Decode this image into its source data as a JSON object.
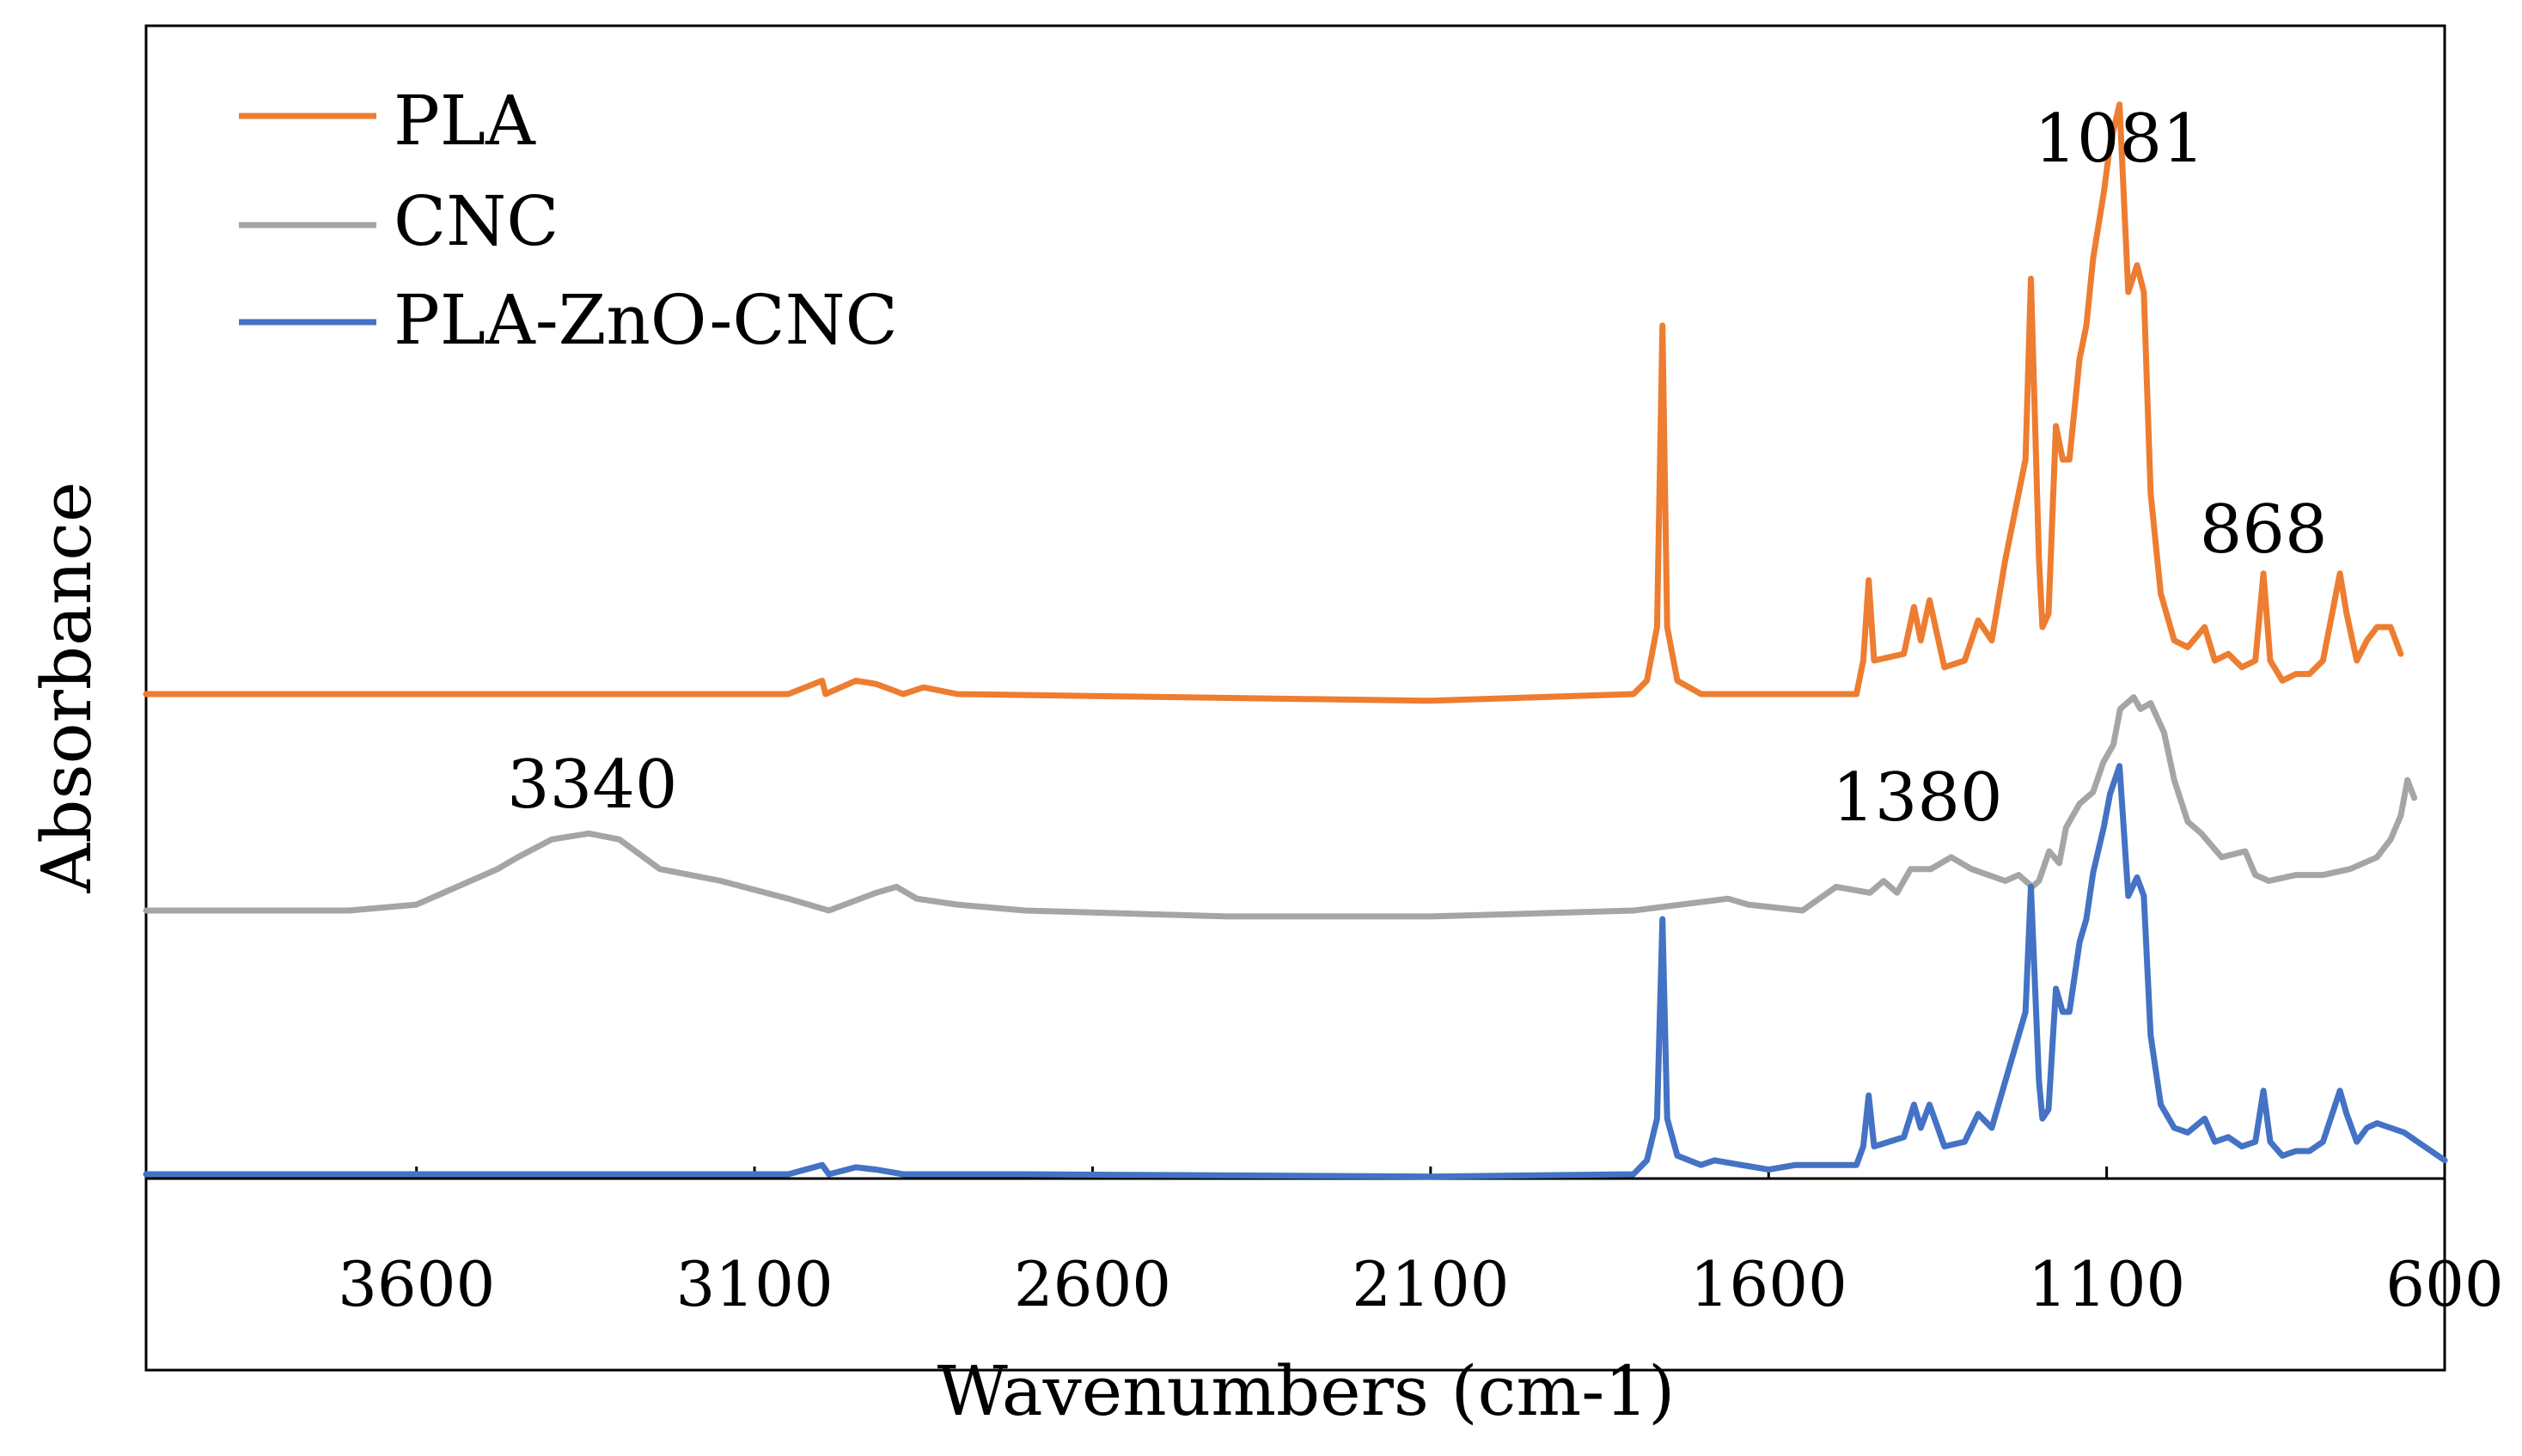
{
  "chart_data": {
    "type": "line",
    "title": "",
    "xlabel": "Wavenumbers (cm-1)",
    "ylabel": "Absorbance",
    "x_reversed": true,
    "xlim": [
      4000,
      600
    ],
    "x_ticks": [
      3600,
      3100,
      2600,
      2100,
      1600,
      1100,
      600
    ],
    "x_tick_labels": [
      "3600",
      "3100",
      "2600",
      "2100",
      "1600",
      "1100",
      "600"
    ],
    "y_ticks_shown": false,
    "grid": false,
    "legend_position": "top-left",
    "series": [
      {
        "name": "PLA",
        "color": "#ED7D31",
        "points": [
          [
            4000,
            0.0
          ],
          [
            3500,
            0.0
          ],
          [
            3050,
            0.0
          ],
          [
            3000,
            0.02
          ],
          [
            2995,
            0.0
          ],
          [
            2950,
            0.02
          ],
          [
            2920,
            0.015
          ],
          [
            2880,
            0.0
          ],
          [
            2850,
            0.01
          ],
          [
            2800,
            0.0
          ],
          [
            2100,
            -0.01
          ],
          [
            1800,
            0.0
          ],
          [
            1780,
            0.02
          ],
          [
            1765,
            0.1
          ],
          [
            1757,
            0.55
          ],
          [
            1750,
            0.1
          ],
          [
            1735,
            0.02
          ],
          [
            1700,
            0.0
          ],
          [
            1470,
            0.0
          ],
          [
            1460,
            0.05
          ],
          [
            1452,
            0.17
          ],
          [
            1444,
            0.05
          ],
          [
            1400,
            0.06
          ],
          [
            1385,
            0.13
          ],
          [
            1375,
            0.08
          ],
          [
            1362,
            0.14
          ],
          [
            1340,
            0.04
          ],
          [
            1310,
            0.05
          ],
          [
            1290,
            0.11
          ],
          [
            1270,
            0.08
          ],
          [
            1250,
            0.2
          ],
          [
            1230,
            0.3
          ],
          [
            1220,
            0.35
          ],
          [
            1212,
            0.62
          ],
          [
            1200,
            0.2
          ],
          [
            1195,
            0.1
          ],
          [
            1186,
            0.12
          ],
          [
            1175,
            0.4
          ],
          [
            1165,
            0.35
          ],
          [
            1155,
            0.35
          ],
          [
            1140,
            0.5
          ],
          [
            1130,
            0.55
          ],
          [
            1120,
            0.65
          ],
          [
            1104,
            0.75
          ],
          [
            1095,
            0.82
          ],
          [
            1081,
            0.88
          ],
          [
            1068,
            0.6
          ],
          [
            1055,
            0.64
          ],
          [
            1045,
            0.6
          ],
          [
            1035,
            0.3
          ],
          [
            1020,
            0.15
          ],
          [
            1000,
            0.08
          ],
          [
            980,
            0.07
          ],
          [
            955,
            0.1
          ],
          [
            940,
            0.05
          ],
          [
            920,
            0.06
          ],
          [
            900,
            0.04
          ],
          [
            880,
            0.05
          ],
          [
            868,
            0.18
          ],
          [
            858,
            0.05
          ],
          [
            840,
            0.02
          ],
          [
            820,
            0.03
          ],
          [
            800,
            0.03
          ],
          [
            780,
            0.05
          ],
          [
            755,
            0.18
          ],
          [
            745,
            0.12
          ],
          [
            730,
            0.05
          ],
          [
            715,
            0.08
          ],
          [
            700,
            0.1
          ],
          [
            680,
            0.1
          ],
          [
            665,
            0.06
          ]
        ]
      },
      {
        "name": "CNC",
        "color": "#A5A5A5",
        "points": [
          [
            4000,
            0.0
          ],
          [
            3700,
            0.0
          ],
          [
            3600,
            0.01
          ],
          [
            3520,
            0.05
          ],
          [
            3480,
            0.07
          ],
          [
            3450,
            0.09
          ],
          [
            3400,
            0.12
          ],
          [
            3345,
            0.13
          ],
          [
            3300,
            0.12
          ],
          [
            3240,
            0.07
          ],
          [
            3150,
            0.05
          ],
          [
            3050,
            0.02
          ],
          [
            2990,
            0.0
          ],
          [
            2920,
            0.03
          ],
          [
            2890,
            0.04
          ],
          [
            2860,
            0.02
          ],
          [
            2800,
            0.01
          ],
          [
            2700,
            0.0
          ],
          [
            2400,
            -0.01
          ],
          [
            2100,
            -0.01
          ],
          [
            1800,
            0.0
          ],
          [
            1660,
            0.02
          ],
          [
            1630,
            0.01
          ],
          [
            1550,
            0.0
          ],
          [
            1500,
            0.04
          ],
          [
            1450,
            0.03
          ],
          [
            1430,
            0.05
          ],
          [
            1410,
            0.03
          ],
          [
            1390,
            0.07
          ],
          [
            1380,
            0.07
          ],
          [
            1360,
            0.07
          ],
          [
            1330,
            0.09
          ],
          [
            1300,
            0.07
          ],
          [
            1250,
            0.05
          ],
          [
            1230,
            0.06
          ],
          [
            1210,
            0.04
          ],
          [
            1200,
            0.05
          ],
          [
            1185,
            0.1
          ],
          [
            1170,
            0.08
          ],
          [
            1160,
            0.14
          ],
          [
            1140,
            0.18
          ],
          [
            1120,
            0.2
          ],
          [
            1105,
            0.25
          ],
          [
            1090,
            0.28
          ],
          [
            1080,
            0.34
          ],
          [
            1060,
            0.36
          ],
          [
            1050,
            0.34
          ],
          [
            1035,
            0.35
          ],
          [
            1015,
            0.3
          ],
          [
            1000,
            0.22
          ],
          [
            980,
            0.15
          ],
          [
            960,
            0.13
          ],
          [
            930,
            0.09
          ],
          [
            895,
            0.1
          ],
          [
            880,
            0.06
          ],
          [
            860,
            0.05
          ],
          [
            820,
            0.06
          ],
          [
            780,
            0.06
          ],
          [
            740,
            0.07
          ],
          [
            700,
            0.09
          ],
          [
            680,
            0.12
          ],
          [
            665,
            0.16
          ],
          [
            655,
            0.22
          ],
          [
            645,
            0.19
          ]
        ]
      },
      {
        "name": "PLA-ZnO-CNC",
        "color": "#4472C4",
        "points": [
          [
            4000,
            0.0
          ],
          [
            3500,
            0.0
          ],
          [
            3050,
            0.0
          ],
          [
            3000,
            0.02
          ],
          [
            2990,
            0.0
          ],
          [
            2950,
            0.015
          ],
          [
            2920,
            0.01
          ],
          [
            2880,
            0.0
          ],
          [
            2700,
            0.0
          ],
          [
            2100,
            -0.005
          ],
          [
            1800,
            0.0
          ],
          [
            1780,
            0.03
          ],
          [
            1765,
            0.12
          ],
          [
            1757,
            0.55
          ],
          [
            1750,
            0.12
          ],
          [
            1735,
            0.04
          ],
          [
            1700,
            0.02
          ],
          [
            1680,
            0.03
          ],
          [
            1600,
            0.01
          ],
          [
            1560,
            0.02
          ],
          [
            1470,
            0.02
          ],
          [
            1460,
            0.06
          ],
          [
            1452,
            0.17
          ],
          [
            1444,
            0.06
          ],
          [
            1400,
            0.08
          ],
          [
            1385,
            0.15
          ],
          [
            1375,
            0.1
          ],
          [
            1362,
            0.15
          ],
          [
            1340,
            0.06
          ],
          [
            1310,
            0.07
          ],
          [
            1290,
            0.13
          ],
          [
            1270,
            0.1
          ],
          [
            1250,
            0.2
          ],
          [
            1230,
            0.3
          ],
          [
            1220,
            0.35
          ],
          [
            1212,
            0.62
          ],
          [
            1200,
            0.2
          ],
          [
            1195,
            0.12
          ],
          [
            1186,
            0.14
          ],
          [
            1175,
            0.4
          ],
          [
            1165,
            0.35
          ],
          [
            1155,
            0.35
          ],
          [
            1140,
            0.5
          ],
          [
            1130,
            0.55
          ],
          [
            1120,
            0.65
          ],
          [
            1104,
            0.75
          ],
          [
            1095,
            0.82
          ],
          [
            1081,
            0.88
          ],
          [
            1068,
            0.6
          ],
          [
            1055,
            0.64
          ],
          [
            1045,
            0.6
          ],
          [
            1035,
            0.3
          ],
          [
            1020,
            0.15
          ],
          [
            1000,
            0.1
          ],
          [
            980,
            0.09
          ],
          [
            955,
            0.12
          ],
          [
            940,
            0.07
          ],
          [
            920,
            0.08
          ],
          [
            900,
            0.06
          ],
          [
            880,
            0.07
          ],
          [
            868,
            0.18
          ],
          [
            858,
            0.07
          ],
          [
            840,
            0.04
          ],
          [
            820,
            0.05
          ],
          [
            800,
            0.05
          ],
          [
            780,
            0.07
          ],
          [
            755,
            0.18
          ],
          [
            745,
            0.13
          ],
          [
            730,
            0.07
          ],
          [
            715,
            0.1
          ],
          [
            700,
            0.11
          ],
          [
            680,
            0.1
          ],
          [
            660,
            0.09
          ],
          [
            640,
            0.07
          ],
          [
            620,
            0.05
          ],
          [
            600,
            0.03
          ]
        ]
      }
    ],
    "annotations": [
      {
        "text": "1081",
        "x": 1081,
        "series": "PLA"
      },
      {
        "text": "868",
        "x": 868,
        "series": "PLA"
      },
      {
        "text": "3340",
        "x": 3340,
        "series": "CNC"
      },
      {
        "text": "1380",
        "x": 1380,
        "series": "CNC"
      }
    ]
  }
}
